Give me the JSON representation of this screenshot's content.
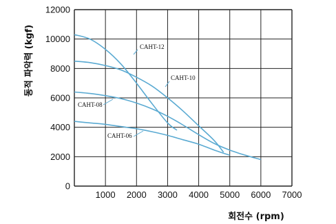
{
  "chart_data": {
    "type": "line",
    "title": "",
    "xlabel": "회전수 (rpm)",
    "ylabel": "동적 파악력 (kgf)",
    "xlim": [
      0,
      7000
    ],
    "ylim": [
      0,
      12000
    ],
    "x_ticks": [
      "1000",
      "2000",
      "3000",
      "4000",
      "5000",
      "6000",
      "7000"
    ],
    "y_ticks": [
      "0",
      "2000",
      "4000",
      "6000",
      "8000",
      "10000",
      "12000"
    ],
    "grid": true,
    "line_color": "#5aaad2",
    "series": [
      {
        "name": "CAHT-12",
        "x": [
          0,
          500,
          1000,
          1500,
          2000,
          2500,
          3000,
          3300
        ],
        "y": [
          10300,
          10000,
          9300,
          8300,
          7000,
          5600,
          4300,
          3800
        ]
      },
      {
        "name": "CAHT-10",
        "x": [
          0,
          500,
          1000,
          1500,
          2000,
          2500,
          3000,
          3500,
          4000,
          4500,
          4800
        ],
        "y": [
          8500,
          8400,
          8200,
          7900,
          7400,
          6800,
          6000,
          5100,
          4100,
          3100,
          2300
        ]
      },
      {
        "name": "CAHT-08",
        "x": [
          0,
          500,
          1000,
          1500,
          2000,
          2500,
          3000,
          3500,
          4000,
          4500,
          5000,
          5500,
          6000
        ],
        "y": [
          6400,
          6300,
          6150,
          5950,
          5650,
          5250,
          4750,
          4150,
          3500,
          2900,
          2450,
          2100,
          1800
        ]
      },
      {
        "name": "CAHT-06",
        "x": [
          0,
          500,
          1000,
          1500,
          2000,
          2500,
          3000,
          3500,
          4000,
          4500,
          5000
        ],
        "y": [
          4400,
          4300,
          4200,
          4050,
          3900,
          3700,
          3450,
          3150,
          2850,
          2450,
          2100
        ]
      }
    ]
  }
}
